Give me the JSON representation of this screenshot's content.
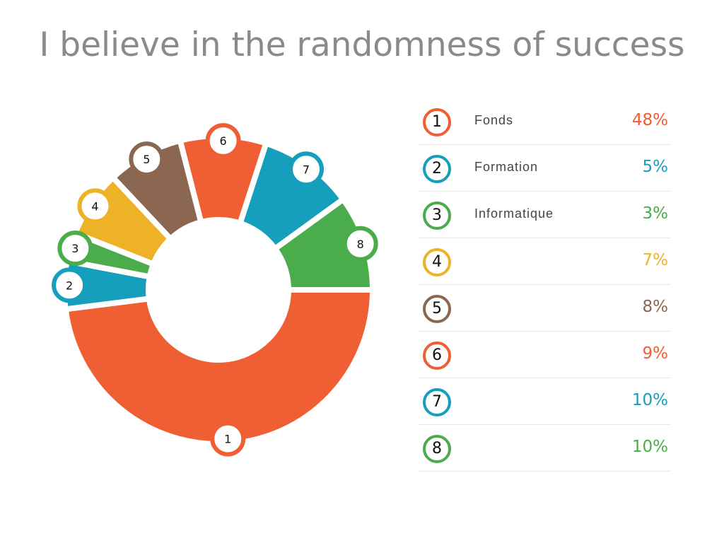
{
  "title": "I believe in the randomness of success",
  "chart_data": {
    "type": "pie",
    "donut": true,
    "title": "I believe in the randomness of success",
    "legend": "right",
    "slices": [
      {
        "id": "1",
        "label": "Fonds",
        "value": 48,
        "pct_text": "48%",
        "color": "#F05E33"
      },
      {
        "id": "2",
        "label": "Formation",
        "value": 5,
        "pct_text": "5%",
        "color": "#169FBC"
      },
      {
        "id": "3",
        "label": "Informatique",
        "value": 3,
        "pct_text": "3%",
        "color": "#4AAC4A"
      },
      {
        "id": "4",
        "label": "",
        "value": 7,
        "pct_text": "7%",
        "color": "#EDB228"
      },
      {
        "id": "5",
        "label": "",
        "value": 8,
        "pct_text": "8%",
        "color": "#8B6651"
      },
      {
        "id": "6",
        "label": "",
        "value": 9,
        "pct_text": "9%",
        "color": "#F05E33"
      },
      {
        "id": "7",
        "label": "",
        "value": 10,
        "pct_text": "10%",
        "color": "#169FBC"
      },
      {
        "id": "8",
        "label": "",
        "value": 10,
        "pct_text": "10%",
        "color": "#4AAC4A"
      }
    ]
  }
}
